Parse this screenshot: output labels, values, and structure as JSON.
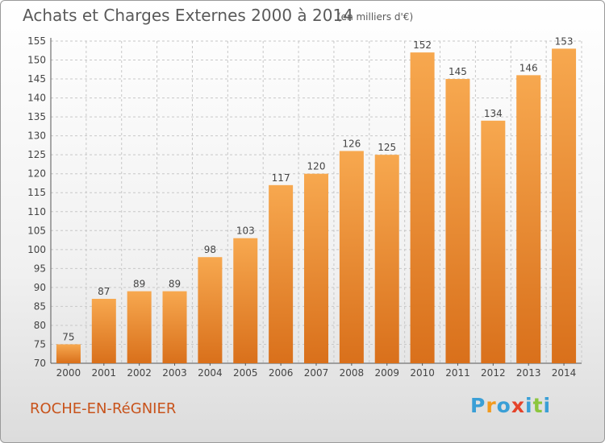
{
  "title": "Achats et Charges Externes 2000 à 2014",
  "subtitle": "(en milliers d'€)",
  "town": "ROCHE-EN-RéGNIER",
  "logo": {
    "text": "Proxiti",
    "letter_colors": [
      "#3a9fd6",
      "#f29a1e",
      "#3a9fd6",
      "#e5432a",
      "#3a9fd6",
      "#8cc63e",
      "#3a9fd6"
    ]
  },
  "colors": {
    "bar_light": "#f7a84f",
    "bar_dark": "#d9701b",
    "grid": "#c8c8c8",
    "text": "#444444"
  },
  "chart_data": {
    "type": "bar",
    "title": "Achats et Charges Externes 2000 à 2014",
    "subtitle": "(en milliers d'€)",
    "categories": [
      "2000",
      "2001",
      "2002",
      "2003",
      "2004",
      "2005",
      "2006",
      "2007",
      "2008",
      "2009",
      "2010",
      "2011",
      "2012",
      "2013",
      "2014"
    ],
    "values": [
      75,
      87,
      89,
      89,
      98,
      103,
      117,
      120,
      126,
      125,
      152,
      145,
      134,
      146,
      153
    ],
    "ylim": [
      70,
      155
    ],
    "yticks": [
      70,
      75,
      80,
      85,
      90,
      95,
      100,
      105,
      110,
      115,
      120,
      125,
      130,
      135,
      140,
      145,
      150,
      155
    ],
    "grid": true,
    "data_labels": true
  }
}
